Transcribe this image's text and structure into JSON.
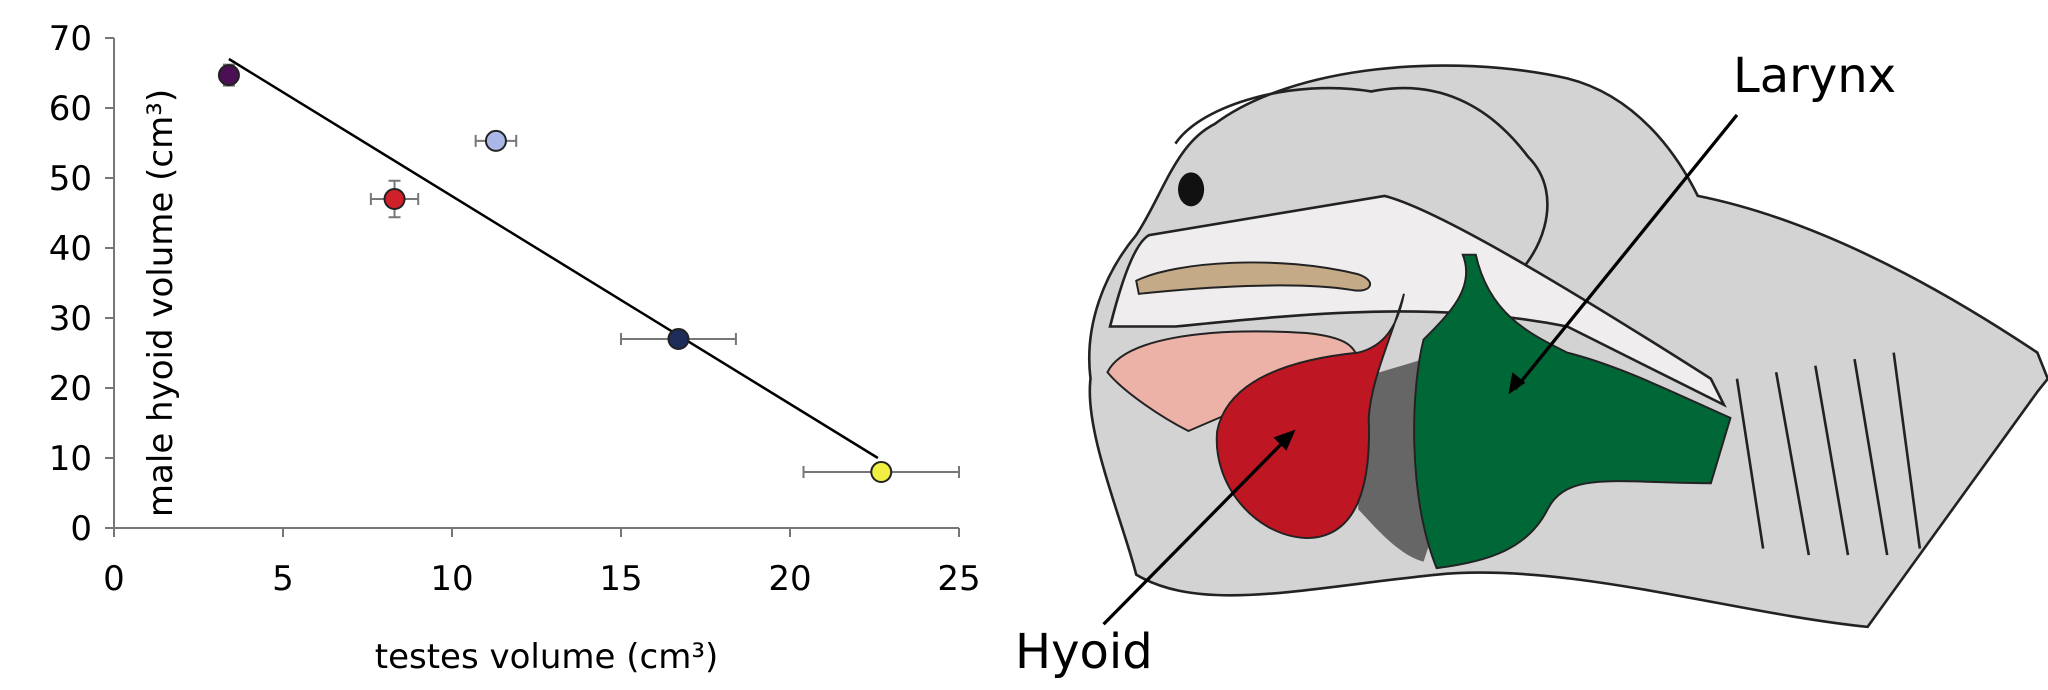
{
  "chart_data": {
    "type": "scatter",
    "xlabel": "testes volume (cm³)",
    "ylabel": "male hyoid volume (cm³)",
    "xlim": [
      0,
      25
    ],
    "ylim": [
      0,
      70
    ],
    "xticks": [
      0,
      5,
      10,
      15,
      20,
      25
    ],
    "yticks": [
      0,
      10,
      20,
      30,
      40,
      50,
      60,
      70
    ],
    "x": [
      3.4,
      11.3,
      8.3,
      16.7,
      22.7
    ],
    "xerr": [
      null,
      0.6,
      0.7,
      1.7,
      2.3
    ],
    "series": [
      {
        "values": [
          64.7,
          55.3,
          47,
          27,
          8
        ],
        "yerr": [
          1.5,
          null,
          2.6,
          null,
          null
        ],
        "colors": [
          "#4b0f55",
          "#a9b8e6",
          "#d0202a",
          "#1e2c5a",
          "#f2ef44"
        ]
      }
    ],
    "trendline": {
      "x": [
        3.4,
        22.6
      ],
      "values": [
        67,
        10
      ],
      "color": "#000000"
    }
  },
  "illustration": {
    "labels": [
      "Larynx",
      "Hyoid"
    ]
  }
}
